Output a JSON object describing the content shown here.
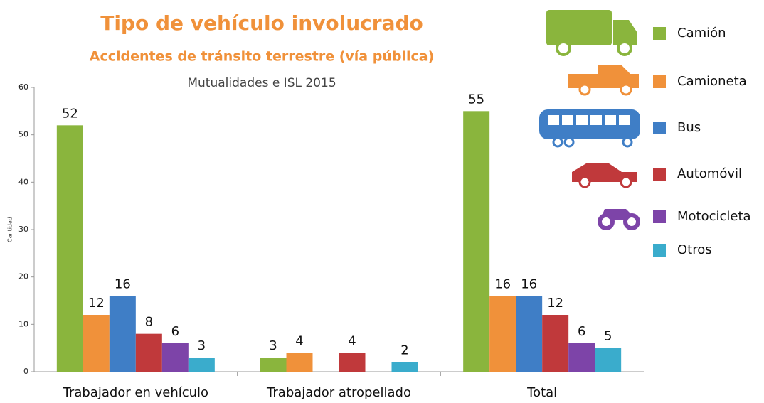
{
  "chart_data": {
    "type": "bar",
    "title": "Tipo de vehículo involucrado",
    "subtitle": "Accidentes de tránsito terrestre (vía pública)",
    "note": "Mutualidades e ISL  2015",
    "ylabel": "Cantidad",
    "categories": [
      "Trabajador en vehículo",
      "Trabajador atropellado",
      "Total"
    ],
    "series": [
      {
        "name": "Camión",
        "color": "#8ab53d",
        "values": [
          52,
          3,
          55
        ]
      },
      {
        "name": "Camioneta",
        "color": "#f0913a",
        "values": [
          12,
          4,
          16
        ]
      },
      {
        "name": "Bus",
        "color": "#3f7ec6",
        "values": [
          16,
          null,
          16
        ]
      },
      {
        "name": "Automóvil",
        "color": "#c0393b",
        "values": [
          8,
          4,
          12
        ]
      },
      {
        "name": "Motocicleta",
        "color": "#7d44a8",
        "values": [
          6,
          null,
          6
        ]
      },
      {
        "name": "Otros",
        "color": "#3aaccc",
        "values": [
          3,
          2,
          5
        ]
      }
    ],
    "ylim": [
      0,
      60
    ],
    "yticks": [
      0,
      10,
      20,
      30,
      40,
      50,
      60
    ],
    "grid": false,
    "legend": "right"
  }
}
